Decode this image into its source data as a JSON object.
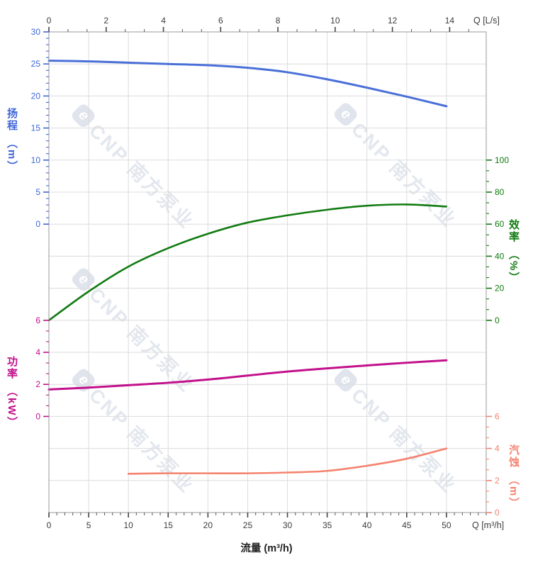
{
  "watermark": {
    "logo_letter": "e",
    "text": "CNP 南方泵业"
  },
  "chart_data": {
    "type": "line",
    "title": "",
    "legend": false,
    "grid": true,
    "x_axis_bottom": {
      "title": "流量 (m³/h)",
      "corner_label": "Q [m³/h]",
      "unit": "m³/h",
      "min": 0,
      "max": 55,
      "major_ticks": [
        0,
        5,
        10,
        15,
        20,
        25,
        30,
        35,
        40,
        45,
        50
      ],
      "minor_step": 1,
      "tick_color": "#3c3c3c"
    },
    "x_axis_top": {
      "corner_label": "Q [L/s]",
      "unit": "L/s",
      "major_ticks": [
        0,
        2,
        4,
        6,
        8,
        10,
        12,
        14
      ],
      "minor_subdiv": 3,
      "to_m3h": 3.6,
      "tick_color": "#3c3c3c"
    },
    "y_axes": [
      {
        "id": "head",
        "title": "扬程",
        "unit": "（m）",
        "side": "left",
        "color": "#3f66d8",
        "ticks": [
          30,
          25,
          20,
          15,
          10,
          5,
          0
        ],
        "row_start": 0,
        "minor_subdiv": 5
      },
      {
        "id": "efficiency",
        "title": "效率",
        "unit": "（%）",
        "side": "right",
        "color": "#117b11",
        "ticks": [
          100,
          80,
          60,
          40,
          20,
          0
        ],
        "row_start": 4,
        "minor_subdiv": 3
      },
      {
        "id": "power",
        "title": "功率",
        "unit": "（kW）",
        "side": "left",
        "color": "#c2108c",
        "ticks": [
          6,
          4,
          2,
          0
        ],
        "row_start": 9,
        "minor_subdiv": 3
      },
      {
        "id": "npsh",
        "title": "汽蚀",
        "unit": "（m）",
        "side": "right",
        "color": "#f5826e",
        "ticks": [
          6,
          4,
          2,
          0
        ],
        "row_start": 12,
        "minor_subdiv": 3
      }
    ],
    "series": [
      {
        "name": "head",
        "axis": "head",
        "color": "#4a6fd8",
        "stroke_width": 3.0,
        "x": [
          0,
          5,
          10,
          15,
          20,
          25,
          30,
          35,
          40,
          45,
          50
        ],
        "y": [
          25.5,
          25.4,
          25.2,
          25.0,
          24.8,
          24.4,
          23.7,
          22.6,
          21.3,
          19.9,
          18.4
        ]
      },
      {
        "name": "efficiency",
        "axis": "efficiency",
        "color": "#117b11",
        "stroke_width": 2.6,
        "x": [
          0,
          5,
          10,
          15,
          20,
          25,
          30,
          35,
          40,
          45,
          50
        ],
        "y": [
          0,
          18,
          33.5,
          45,
          54,
          61,
          65.5,
          69,
          71.5,
          72.3,
          71
        ]
      },
      {
        "name": "power",
        "axis": "power",
        "color": "#c2108c",
        "stroke_width": 3.0,
        "x": [
          0,
          5,
          10,
          15,
          20,
          25,
          30,
          35,
          40,
          45,
          50
        ],
        "y": [
          1.68,
          1.8,
          1.95,
          2.1,
          2.3,
          2.55,
          2.8,
          3.0,
          3.18,
          3.35,
          3.5
        ]
      },
      {
        "name": "npsh",
        "axis": "npsh",
        "color": "#f5826e",
        "stroke_width": 2.6,
        "x": [
          10,
          15,
          20,
          25,
          30,
          35,
          40,
          45,
          50
        ],
        "y": [
          2.42,
          2.45,
          2.45,
          2.45,
          2.5,
          2.6,
          2.92,
          3.36,
          4.0
        ]
      }
    ]
  }
}
